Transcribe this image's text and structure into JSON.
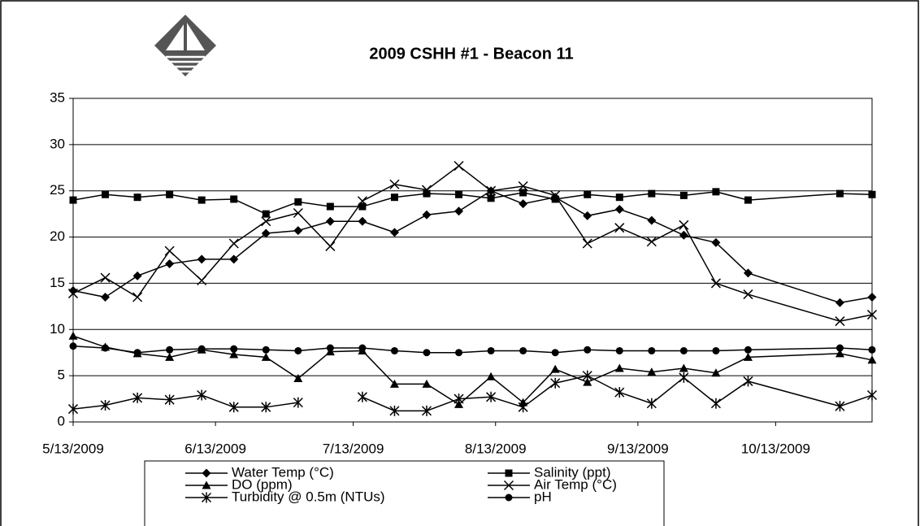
{
  "chart_data": {
    "type": "line",
    "title": "2009 CSHH #1 - Beacon 11",
    "x": [
      "2009-05-13",
      "2009-05-20",
      "2009-05-27",
      "2009-06-03",
      "2009-06-10",
      "2009-06-17",
      "2009-06-24",
      "2009-07-01",
      "2009-07-08",
      "2009-07-15",
      "2009-07-22",
      "2009-07-29",
      "2009-08-05",
      "2009-08-12",
      "2009-08-19",
      "2009-08-26",
      "2009-09-02",
      "2009-09-09",
      "2009-09-16",
      "2009-09-23",
      "2009-09-30",
      "2009-10-07",
      "2009-10-27",
      "2009-11-03"
    ],
    "xlim": [
      "2009-05-13",
      "2009-11-03"
    ],
    "xticks": [
      {
        "value": "2009-05-13",
        "label": "5/13/2009"
      },
      {
        "value": "2009-06-13",
        "label": "6/13/2009"
      },
      {
        "value": "2009-07-13",
        "label": "7/13/2009"
      },
      {
        "value": "2009-08-13",
        "label": "8/13/2009"
      },
      {
        "value": "2009-09-13",
        "label": "9/13/2009"
      },
      {
        "value": "2009-10-13",
        "label": "10/13/2009"
      }
    ],
    "ylim": [
      0,
      35
    ],
    "yticks": [
      0,
      5,
      10,
      15,
      20,
      25,
      30,
      35
    ],
    "grid": true,
    "series": [
      {
        "name": "Water Temp (°C)",
        "color": "#000000",
        "marker": "diamond",
        "values": [
          14.2,
          13.5,
          15.8,
          17.1,
          17.6,
          17.6,
          20.4,
          20.7,
          21.7,
          21.7,
          20.5,
          22.4,
          22.8,
          25.0,
          23.6,
          24.3,
          22.3,
          23.0,
          21.8,
          20.2,
          19.4,
          16.1,
          12.9,
          13.5
        ]
      },
      {
        "name": "Salinity (ppt)",
        "color": "#000000",
        "marker": "square",
        "values": [
          24.0,
          24.6,
          24.3,
          24.6,
          24.0,
          24.1,
          22.5,
          23.8,
          23.3,
          23.3,
          24.3,
          24.7,
          24.6,
          24.2,
          24.8,
          24.1,
          24.6,
          24.3,
          24.7,
          24.5,
          24.9,
          24.0,
          24.7,
          24.6
        ]
      },
      {
        "name": "DO (ppm)",
        "color": "#000000",
        "marker": "triangle",
        "values": [
          9.3,
          8.1,
          7.4,
          7.0,
          7.8,
          7.3,
          7.0,
          4.7,
          7.6,
          7.7,
          4.1,
          4.1,
          1.9,
          4.9,
          2.1,
          5.7,
          4.3,
          5.8,
          5.4,
          5.8,
          5.3,
          7.0,
          7.4,
          6.7
        ]
      },
      {
        "name": "Air Temp (°C)",
        "color": "#000000",
        "marker": "x",
        "values": [
          13.9,
          15.6,
          13.5,
          18.5,
          15.3,
          19.3,
          21.7,
          22.6,
          19.0,
          23.9,
          25.7,
          25.1,
          27.7,
          25.0,
          25.5,
          24.5,
          19.3,
          21.0,
          19.5,
          21.3,
          15.0,
          13.8,
          10.9,
          11.6
        ]
      },
      {
        "name": "Turbidity @ 0.5m (NTUs)",
        "color": "#000000",
        "marker": "star",
        "values": [
          1.4,
          1.8,
          2.6,
          2.4,
          2.9,
          1.6,
          1.6,
          2.1,
          null,
          2.7,
          1.2,
          1.2,
          2.5,
          2.7,
          1.6,
          4.2,
          5.0,
          3.2,
          2.0,
          4.8,
          2.0,
          4.4,
          1.7,
          2.9
        ]
      },
      {
        "name": "pH",
        "color": "#000000",
        "marker": "circle",
        "values": [
          8.2,
          8.0,
          7.5,
          7.8,
          7.9,
          7.9,
          7.8,
          7.7,
          8.0,
          8.0,
          7.7,
          7.5,
          7.5,
          7.7,
          7.7,
          7.5,
          7.8,
          7.7,
          7.7,
          7.7,
          7.7,
          7.8,
          8.0,
          7.8
        ]
      }
    ]
  }
}
